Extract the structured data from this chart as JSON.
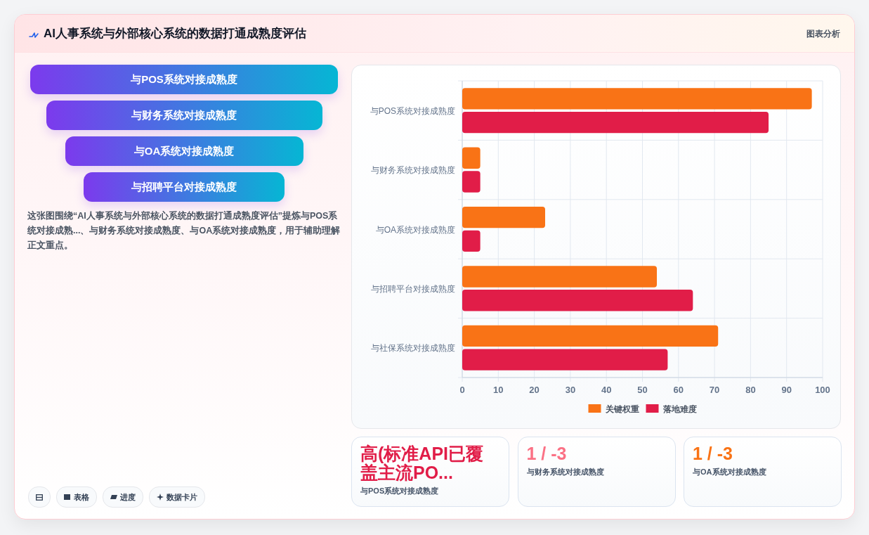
{
  "chart_data": [
    {
      "type": "other",
      "title": "AI人事系统与外部核心系统的数据打通成熟度评估",
      "annotations": [
        "图表分析"
      ]
    },
    {
      "type": "other",
      "annotations": [
        "与POS系统对接成熟度",
        "与财务系统对接成熟度",
        "与OA系统对接成熟度",
        "与招聘平台对接成熟度",
        "这张图围绕“AI人事系统与外部核心系统的数据打通成熟度评估”提炼与POS系统对接成熟...、与财务系统对接成熟度、与OA系统对接成熟度，用于辅助理解正文重点。",
        "表格",
        "进度",
        "数据卡片"
      ]
    },
    {
      "type": "bar",
      "orientation": "horizontal",
      "categories": [
        "与POS系统对接成熟度",
        "与财务系统对接成熟度",
        "与OA系统对接成熟度",
        "与招聘平台对接成熟度",
        "与社保系统对接成熟度"
      ],
      "series": [
        {
          "name": "关键权重",
          "color": "#f97316",
          "values": [
            97,
            5,
            23,
            54,
            71
          ]
        },
        {
          "name": "落地难度",
          "color": "#e11d48",
          "values": [
            85,
            5,
            5,
            64,
            57
          ]
        }
      ],
      "xlim": [
        0,
        100
      ],
      "xticks": [
        0,
        10,
        20,
        30,
        40,
        50,
        60,
        70,
        80,
        90,
        100
      ],
      "grid": true,
      "legend": "bottom"
    },
    {
      "type": "other",
      "annotations": [
        "高(标准API已覆盖主流PO...",
        "与POS系统对接成熟度",
        "1 / -3",
        "与财务系统对接成熟度",
        "1 / -3",
        "与OA系统对接成熟度"
      ]
    }
  ]
}
